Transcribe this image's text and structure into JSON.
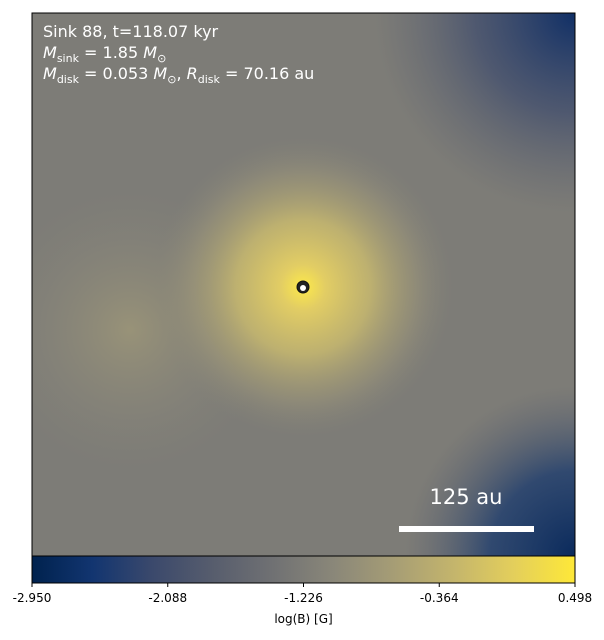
{
  "chart_data": {
    "type": "image",
    "annotation_line_1": "Sink 88, t=118.07 kyr",
    "annotation_line_2": [
      "M",
      "sink",
      " = 1.85 ",
      "M",
      "⊙"
    ],
    "annotation_line_3": [
      "M",
      "disk",
      " = 0.053 ",
      "M",
      "⊙",
      ", ",
      "R",
      "disk",
      " = 70.16 au"
    ],
    "scale_bar_label": "125 au",
    "colorbar": {
      "label": "log(B) [G]",
      "lim": [
        -2.95,
        0.498
      ],
      "ticks": [
        {
          "value": -2.95,
          "label": "-2.950"
        },
        -2.088,
        -1.226,
        -0.364,
        0.498
      ],
      "colormap": [
        "#00224e",
        "#123570",
        "#3b496c",
        "#575d6d",
        "#707173",
        "#8a8779",
        "#a69d75",
        "#c4b56c",
        "#e4cf5b",
        "#fee838"
      ]
    }
  }
}
